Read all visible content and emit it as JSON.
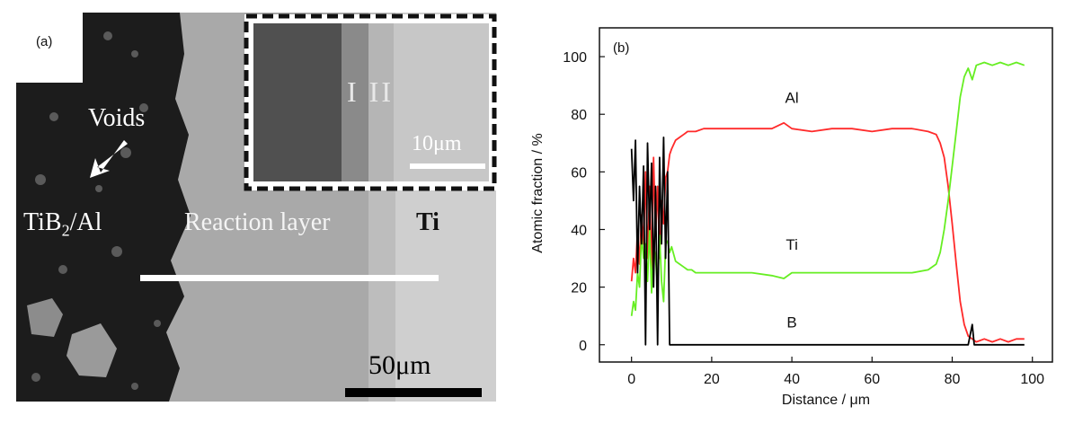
{
  "panel_a": {
    "label": "(a)",
    "voids_label": "Voids",
    "tib2_prefix": "TiB",
    "tib2_subscript": "2",
    "tib2_suffix": "/Al",
    "reaction_layer_label": "Reaction layer",
    "ti_label": "Ti",
    "inset_layer_label": "I II",
    "inset_scale_label": "10μm",
    "main_scale_label": "50μm",
    "colors": {
      "tib2_region": "#1c1c1c",
      "reaction_layer": "#a9a9a9",
      "ti_region": "#cfcfcf",
      "inset_frame": "#111111"
    }
  },
  "chart_data": {
    "type": "line",
    "panel_label": "(b)",
    "xlabel": "Distance / μm",
    "ylabel": "Atomic fraction / %",
    "xlim": [
      -8,
      105
    ],
    "ylim": [
      -6,
      110
    ],
    "xticks": [
      0,
      20,
      40,
      60,
      80,
      100
    ],
    "yticks": [
      0,
      20,
      40,
      60,
      80,
      100
    ],
    "grid": false,
    "series": [
      {
        "name": "Al",
        "color": "#ff2a2a",
        "x": [
          0,
          0.5,
          1,
          1.5,
          2,
          2.5,
          3,
          3.5,
          4,
          4.5,
          5,
          5.5,
          6,
          6.5,
          7,
          7.5,
          8,
          8.5,
          9,
          9.5,
          10,
          11,
          12,
          13,
          14,
          15,
          16,
          18,
          20,
          25,
          30,
          35,
          38,
          40,
          45,
          50,
          55,
          60,
          65,
          70,
          74,
          76,
          77,
          78,
          79,
          80,
          81,
          82,
          83,
          84,
          85,
          86,
          88,
          90,
          92,
          94,
          96,
          98
        ],
        "values": [
          22,
          30,
          25,
          40,
          28,
          45,
          35,
          60,
          30,
          55,
          25,
          65,
          38,
          55,
          30,
          50,
          42,
          58,
          60,
          66,
          68,
          71,
          72,
          73,
          74,
          74,
          74,
          75,
          75,
          75,
          75,
          75,
          77,
          75,
          74,
          75,
          75,
          74,
          75,
          75,
          74,
          73,
          70,
          65,
          55,
          42,
          28,
          15,
          7,
          3,
          2,
          1,
          2,
          1,
          2,
          1,
          2,
          2
        ]
      },
      {
        "name": "Ti",
        "color": "#66ee22",
        "x": [
          0,
          0.5,
          1,
          1.5,
          2,
          2.5,
          3,
          3.5,
          4,
          4.5,
          5,
          5.5,
          6,
          6.5,
          7,
          7.5,
          8,
          8.5,
          9,
          9.5,
          10,
          11,
          12,
          13,
          14,
          15,
          16,
          18,
          20,
          25,
          30,
          35,
          38,
          40,
          45,
          50,
          55,
          60,
          65,
          70,
          74,
          76,
          77,
          78,
          79,
          80,
          81,
          82,
          83,
          84,
          85,
          86,
          88,
          90,
          92,
          94,
          96,
          98
        ],
        "values": [
          10,
          15,
          12,
          25,
          20,
          38,
          30,
          35,
          22,
          40,
          18,
          35,
          30,
          20,
          38,
          22,
          15,
          35,
          36,
          32,
          34,
          29,
          28,
          27,
          26,
          26,
          25,
          25,
          25,
          25,
          25,
          24,
          23,
          25,
          25,
          25,
          25,
          25,
          25,
          25,
          26,
          28,
          32,
          40,
          50,
          62,
          74,
          86,
          93,
          96,
          92,
          97,
          98,
          97,
          98,
          97,
          98,
          97
        ]
      },
      {
        "name": "B",
        "color": "#000000",
        "x": [
          0,
          0.5,
          1,
          1.5,
          2,
          2.5,
          3,
          3.5,
          4,
          4.5,
          5,
          5.5,
          6,
          6.5,
          7,
          7.5,
          8,
          8.5,
          9,
          9.5,
          10,
          20,
          40,
          60,
          80,
          84,
          85,
          85.5,
          86,
          90,
          98
        ],
        "values": [
          68,
          50,
          71,
          25,
          55,
          35,
          62,
          0,
          70,
          40,
          63,
          20,
          55,
          0,
          65,
          35,
          72,
          30,
          60,
          0,
          0,
          0,
          0,
          0,
          0,
          0,
          7,
          0,
          0,
          0,
          0
        ]
      }
    ],
    "series_labels": [
      {
        "text": "Al",
        "x": 40,
        "y": 84
      },
      {
        "text": "Ti",
        "x": 40,
        "y": 33
      },
      {
        "text": "B",
        "x": 40,
        "y": 6
      }
    ]
  }
}
